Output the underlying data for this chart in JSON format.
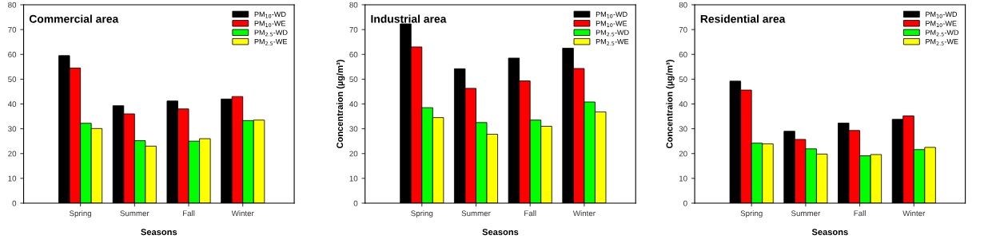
{
  "chart_data": [
    {
      "type": "bar",
      "title": "Commercial area",
      "xlabel": "Seasons",
      "categories": [
        "Spring",
        "Summer",
        "Fall",
        "Winter"
      ],
      "ylim": [
        0,
        80
      ],
      "yticks": [
        0,
        10,
        20,
        30,
        40,
        50,
        60,
        70,
        80
      ],
      "grid": false,
      "legend": "top right",
      "series": [
        {
          "name": "PM$_{10}$-WD",
          "color": "#000000",
          "values": [
            59.5,
            39.3,
            41.2,
            42.0
          ]
        },
        {
          "name": "PM$_{10}$-WE",
          "color": "#ff0000",
          "values": [
            54.5,
            36.0,
            38.0,
            43.0
          ]
        },
        {
          "name": "PM$_{2.5}$-WD",
          "color": "#00ff00",
          "values": [
            32.2,
            25.2,
            25.0,
            33.3
          ]
        },
        {
          "name": "PM$_{2.5}$-WE",
          "color": "#ffff00",
          "values": [
            30.1,
            23.0,
            26.0,
            33.5
          ]
        }
      ]
    },
    {
      "type": "bar",
      "title": "Industrial area",
      "xlabel": "Seasons",
      "ylabel": "Concentraion (µg/m³)",
      "categories": [
        "Spring",
        "Summer",
        "Fall",
        "Winter"
      ],
      "ylim": [
        0,
        80
      ],
      "yticks": [
        0,
        10,
        20,
        30,
        40,
        50,
        60,
        70,
        80
      ],
      "grid": false,
      "legend": "top right",
      "series": [
        {
          "name": "PM$_{10}$-WD",
          "color": "#000000",
          "values": [
            72.3,
            54.2,
            58.5,
            62.5
          ]
        },
        {
          "name": "PM$_{10}$-WE",
          "color": "#ff0000",
          "values": [
            63.0,
            46.3,
            49.3,
            54.3
          ]
        },
        {
          "name": "PM$_{2.5}$-WD",
          "color": "#00ff00",
          "values": [
            38.5,
            32.5,
            33.5,
            40.8
          ]
        },
        {
          "name": "PM$_{2.5}$-WE",
          "color": "#ffff00",
          "values": [
            34.5,
            27.8,
            31.0,
            36.8
          ]
        }
      ]
    },
    {
      "type": "bar",
      "title": "Residential area",
      "xlabel": "Seasons",
      "ylabel": "Concentraion (µg/m³)",
      "categories": [
        "Spring",
        "Summer",
        "Fall",
        "Winter"
      ],
      "ylim": [
        0,
        80
      ],
      "yticks": [
        0,
        10,
        20,
        30,
        40,
        50,
        60,
        70,
        80
      ],
      "grid": false,
      "legend": "top right",
      "series": [
        {
          "name": "PM$_{10}$-WD",
          "color": "#000000",
          "values": [
            49.2,
            29.0,
            32.3,
            33.8
          ]
        },
        {
          "name": "PM$_{10}$-WE",
          "color": "#ff0000",
          "values": [
            45.6,
            25.7,
            29.3,
            35.2
          ]
        },
        {
          "name": "PM$_{2.5}$-WD",
          "color": "#00ff00",
          "values": [
            24.2,
            21.9,
            19.1,
            21.6
          ]
        },
        {
          "name": "PM$_{2.5}$-WE",
          "color": "#ffff00",
          "values": [
            23.9,
            19.8,
            19.6,
            22.5
          ]
        }
      ]
    }
  ]
}
